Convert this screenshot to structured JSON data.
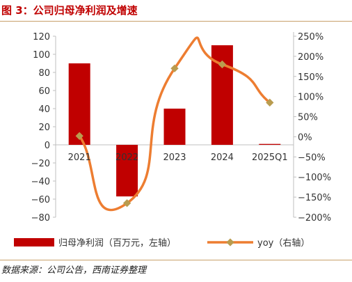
{
  "figure": {
    "title": "图 3：公司归母净利润及增速",
    "source": "数据来源：公司公告，西南证券整理"
  },
  "colors": {
    "bar": "#c00000",
    "line": "#ed7d31",
    "marker": "#b99c4f",
    "axis": "#bfbfbf",
    "text": "#333333"
  },
  "chart_data": {
    "type": "bar",
    "categories": [
      "2021",
      "2022",
      "2023",
      "2024",
      "2025Q1"
    ],
    "series": [
      {
        "name": "归母净利润（百万元，左轴）",
        "type": "bar",
        "axis": "left",
        "values": [
          90,
          -57,
          40,
          110,
          1
        ]
      },
      {
        "name": "yoy（右轴）",
        "type": "line",
        "axis": "right",
        "smooth": true,
        "values": [
          0.02,
          -1.65,
          1.7,
          1.8,
          0.85
        ]
      }
    ],
    "y_left": {
      "min": -80,
      "max": 120,
      "step": 20,
      "ticks": [
        "120",
        "100",
        "80",
        "60",
        "40",
        "20",
        "0",
        "−20",
        "−40",
        "−60",
        "−80"
      ]
    },
    "y_right": {
      "min": -2,
      "max": 2.5,
      "step": 0.5,
      "ticks": [
        "250%",
        "200%",
        "150%",
        "100%",
        "50%",
        "0%",
        "−50%",
        "−100%",
        "−150%",
        "−200%"
      ]
    },
    "grid": false,
    "legend": "bottom"
  }
}
